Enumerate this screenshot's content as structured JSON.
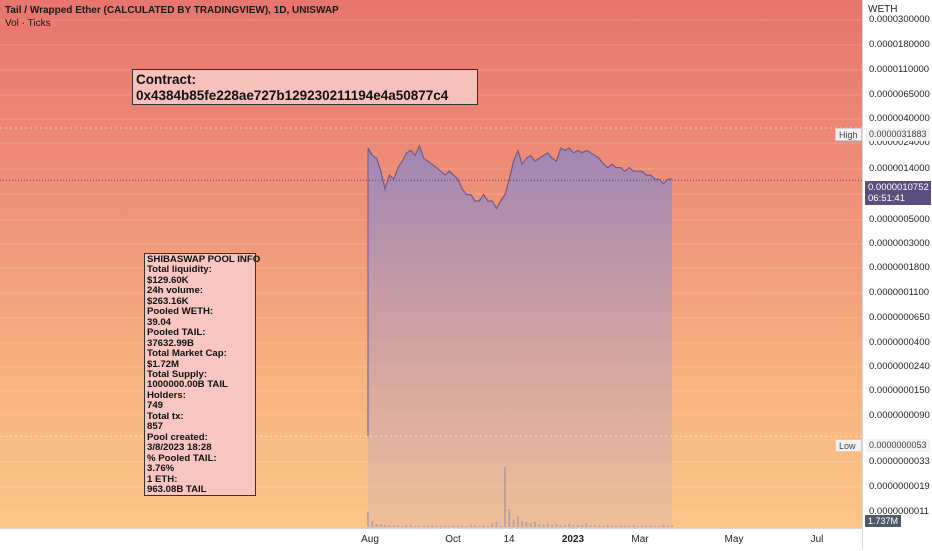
{
  "header": {
    "title": "Tail / Wrapped Ether (CALCULATED BY TRADINGVIEW), 1D, UNISWAP",
    "volume_label": "Vol · Ticks"
  },
  "axis_unit": "WETH",
  "contract": {
    "line1": "Contract:",
    "line2": "0x4384b85fe228ae727b129230211194e4a50877c4"
  },
  "info_box": {
    "lines": [
      "SHIBASWAP POOL INFO",
      "Total liquidity:",
      "$129.60K",
      "24h volume:",
      "$263.16K",
      "Pooled WETH:",
      "39.04",
      "Pooled TAIL:",
      "37632.99B",
      "Total Market Cap:",
      "$1.72M",
      "Total Supply:",
      "1000000.00B TAIL",
      "Holders:",
      "749",
      "Total tx:",
      "857",
      "Pool created:",
      "3/8/2023 18:28",
      "% Pooled TAIL:",
      "3.76%",
      "1 ETH:",
      "963.08B TAIL"
    ]
  },
  "price_scale": {
    "labels": [
      "0.0000300000",
      "0.0000180000",
      "0.0000110000",
      "0.0000065000",
      "0.0000040000",
      "0.0000024000",
      "0.0000014000",
      "0.0000005000",
      "0.0000003000",
      "0.0000001800",
      "0.0000001100",
      "0.0000000650",
      "0.0000000400",
      "0.0000000240",
      "0.0000000150",
      "0.0000000090",
      "0.0000000033",
      "0.0000000019",
      "0.0000000011"
    ]
  },
  "markers": {
    "high_label": "High",
    "high_value": "0.0000031883",
    "low_label": "Low",
    "low_value": "0.0000000053",
    "current_price": "0.0000010752",
    "countdown": "06:51:41",
    "volume_value": "1.737M"
  },
  "time_axis": {
    "labels": [
      {
        "text": "Aug",
        "bold": false
      },
      {
        "text": "Oct",
        "bold": false
      },
      {
        "text": "14",
        "bold": false
      },
      {
        "text": "2023",
        "bold": true
      },
      {
        "text": "Mar",
        "bold": false
      },
      {
        "text": "May",
        "bold": false
      },
      {
        "text": "Jul",
        "bold": false
      }
    ]
  },
  "colors": {
    "background_top": "#e8756e",
    "background_bottom": "#fbc688",
    "area_line": "#6e5a8c",
    "area_fill_top": "#9d86b7",
    "area_fill_bottom": "#d6b3b4",
    "current_price_tag": "#5b4e7e"
  },
  "chart_data": {
    "type": "area",
    "title": "Tail / Wrapped Ether (CALCULATED BY TRADINGVIEW), 1D, UNISWAP",
    "ylabel": "WETH",
    "y_scale": "log",
    "x_ticks": [
      "Aug",
      "Oct",
      "14",
      "2023",
      "Mar",
      "May",
      "Jul"
    ],
    "series": [
      {
        "values": [
          2.1e-06,
          1.8e-06,
          1.7e-06,
          1.3e-06,
          9e-07,
          1.2e-06,
          1.1e-06,
          1.4e-06,
          1.6e-06,
          1.9e-06,
          2e-06,
          1.8e-06,
          2.2e-06,
          1.7e-06,
          1.6e-06,
          1.5e-06,
          1.4e-06,
          1.3e-06,
          1.2e-06,
          1.3e-06,
          1.2e-06,
          1.1e-06,
          9e-07,
          8e-07,
          8e-07,
          7e-07,
          7e-07,
          8e-07,
          7e-07,
          7e-07,
          6e-07,
          7e-07,
          8e-07,
          1.1e-06,
          1.6e-06,
          2e-06,
          1.5e-06,
          1.7e-06,
          1.8e-06,
          1.6e-06,
          1.7e-06,
          1.8e-06,
          1.9e-06,
          1.7e-06,
          1.6e-06,
          2.1e-06,
          2e-06,
          2.1e-06,
          1.9e-06,
          2e-06,
          1.9e-06,
          2e-06,
          1.9e-06,
          1.8e-06,
          1.7e-06,
          1.5e-06,
          1.4e-06,
          1.5e-06,
          1.4e-06,
          1.4e-06,
          1.3e-06,
          1.4e-06,
          1.3e-06,
          1.3e-06,
          1.3e-06,
          1.2e-06,
          1.2e-06,
          1.1e-06,
          1.1e-06,
          1e-06,
          1.1e-06,
          1.1e-06
        ]
      },
      {
        "name": "Vol · Ticks",
        "values": [
          0.25,
          0.1,
          0.05,
          0.05,
          0.04,
          0.03,
          0.03,
          0.03,
          0.02,
          0.03,
          0.04,
          0.02,
          0.02,
          0.02,
          0.02,
          0.03,
          0.02,
          0.02,
          0.02,
          0.02,
          0.02,
          0.03,
          0.02,
          0.02,
          0.04,
          0.03,
          0.02,
          0.03,
          0.02,
          0.06,
          0.09,
          0.02,
          1.0,
          0.3,
          0.12,
          0.18,
          0.1,
          0.08,
          0.06,
          0.09,
          0.05,
          0.04,
          0.06,
          0.04,
          0.05,
          0.03,
          0.04,
          0.05,
          0.03,
          0.04,
          0.03,
          0.06,
          0.03,
          0.04,
          0.03,
          0.02,
          0.04,
          0.03,
          0.02,
          0.03,
          0.02,
          0.02,
          0.03,
          0.02,
          0.02,
          0.02,
          0.03,
          0.02,
          0.02,
          0.04,
          0.02,
          0.03
        ]
      }
    ],
    "high": 3.1883e-06,
    "low": 5.3e-09,
    "last": 1.0752e-06
  }
}
